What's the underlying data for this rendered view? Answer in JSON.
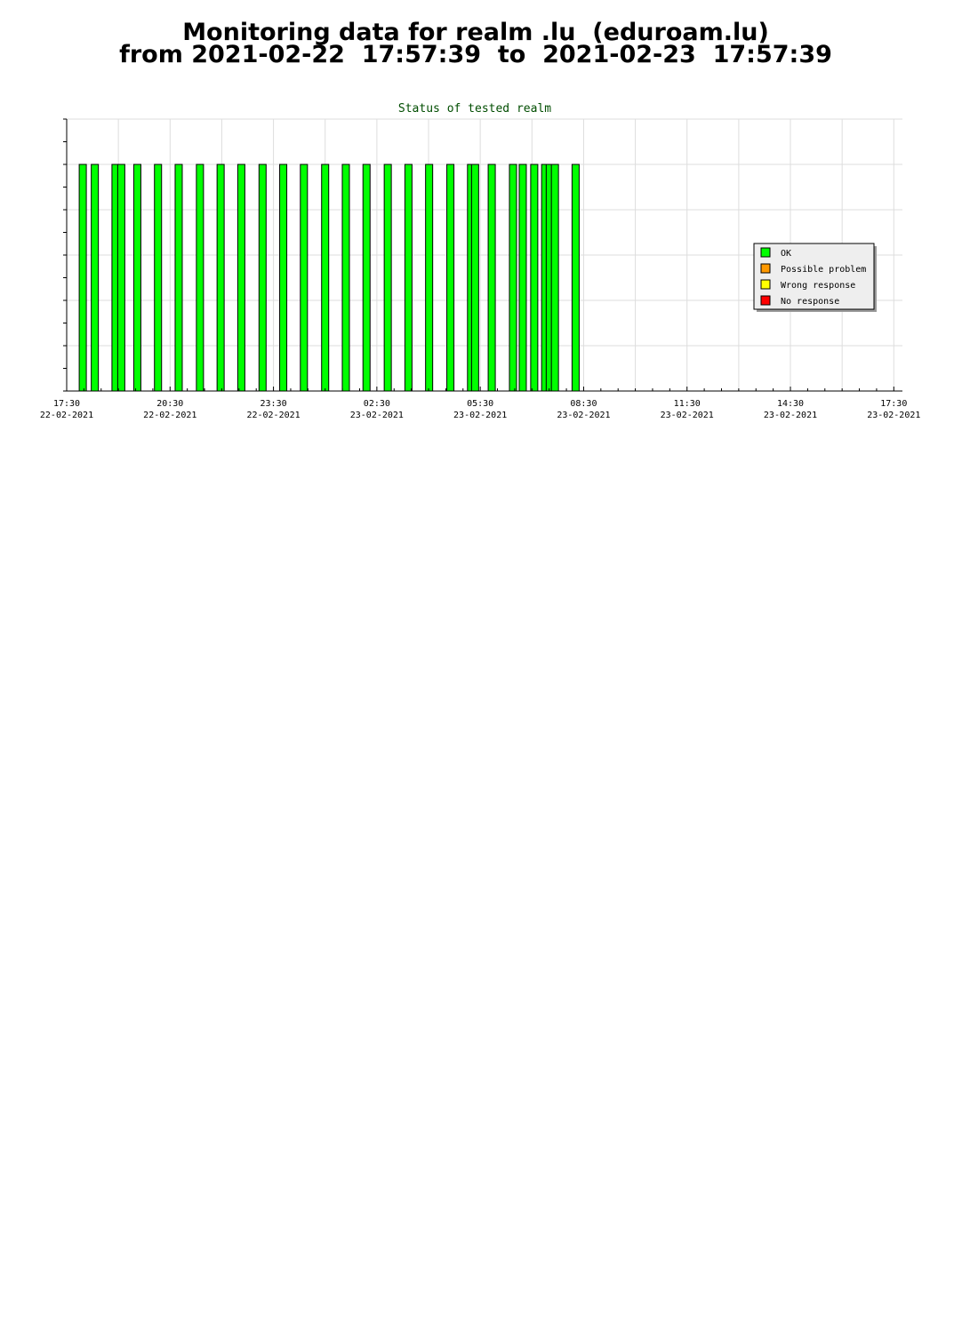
{
  "header": {
    "line1": "Monitoring data for realm .lu  (eduroam.lu)",
    "line2": "from 2021-02-22  17:57:39  to  2021-02-23  17:57:39"
  },
  "chart_data": {
    "type": "bar",
    "title": "Status of tested realm",
    "xlabel": "",
    "ylabel": "",
    "grid": true,
    "legend_position": "right",
    "x_range": [
      "2021-02-22 17:30",
      "2021-02-23 17:45"
    ],
    "ylim": [
      0,
      6
    ],
    "x_ticks": [
      {
        "time": "17:30",
        "date": "22-02-2021"
      },
      {
        "time": "20:30",
        "date": "22-02-2021"
      },
      {
        "time": "23:30",
        "date": "22-02-2021"
      },
      {
        "time": "02:30",
        "date": "23-02-2021"
      },
      {
        "time": "05:30",
        "date": "23-02-2021"
      },
      {
        "time": "08:30",
        "date": "23-02-2021"
      },
      {
        "time": "11:30",
        "date": "23-02-2021"
      },
      {
        "time": "14:30",
        "date": "23-02-2021"
      },
      {
        "time": "17:30",
        "date": "23-02-2021"
      }
    ],
    "legend": [
      {
        "label": "OK",
        "color": "#00ff00"
      },
      {
        "label": "Possible problem",
        "color": "#ff9900"
      },
      {
        "label": "Wrong response",
        "color": "#ffff00"
      },
      {
        "label": "No response",
        "color": "#ff0000"
      }
    ],
    "series": [
      {
        "name": "OK",
        "color": "#00ff00",
        "x": [
          "2021-02-22 17:58",
          "2021-02-22 18:19",
          "2021-02-22 18:55",
          "2021-02-22 19:05",
          "2021-02-22 19:33",
          "2021-02-22 20:09",
          "2021-02-22 20:45",
          "2021-02-22 21:22",
          "2021-02-22 21:58",
          "2021-02-22 22:34",
          "2021-02-22 23:11",
          "2021-02-22 23:47",
          "2021-02-23 00:23",
          "2021-02-23 01:00",
          "2021-02-23 01:36",
          "2021-02-23 02:12",
          "2021-02-23 02:49",
          "2021-02-23 03:25",
          "2021-02-23 04:01",
          "2021-02-23 04:38",
          "2021-02-23 05:14",
          "2021-02-23 05:21",
          "2021-02-23 05:50",
          "2021-02-23 06:27",
          "2021-02-23 06:44",
          "2021-02-23 07:04",
          "2021-02-23 07:23",
          "2021-02-23 07:31",
          "2021-02-23 07:40",
          "2021-02-23 08:16"
        ],
        "values": [
          5,
          5,
          5,
          5,
          5,
          5,
          5,
          5,
          5,
          5,
          5,
          5,
          5,
          5,
          5,
          5,
          5,
          5,
          5,
          5,
          5,
          5,
          5,
          5,
          5,
          5,
          5,
          5,
          5,
          5
        ]
      }
    ]
  }
}
